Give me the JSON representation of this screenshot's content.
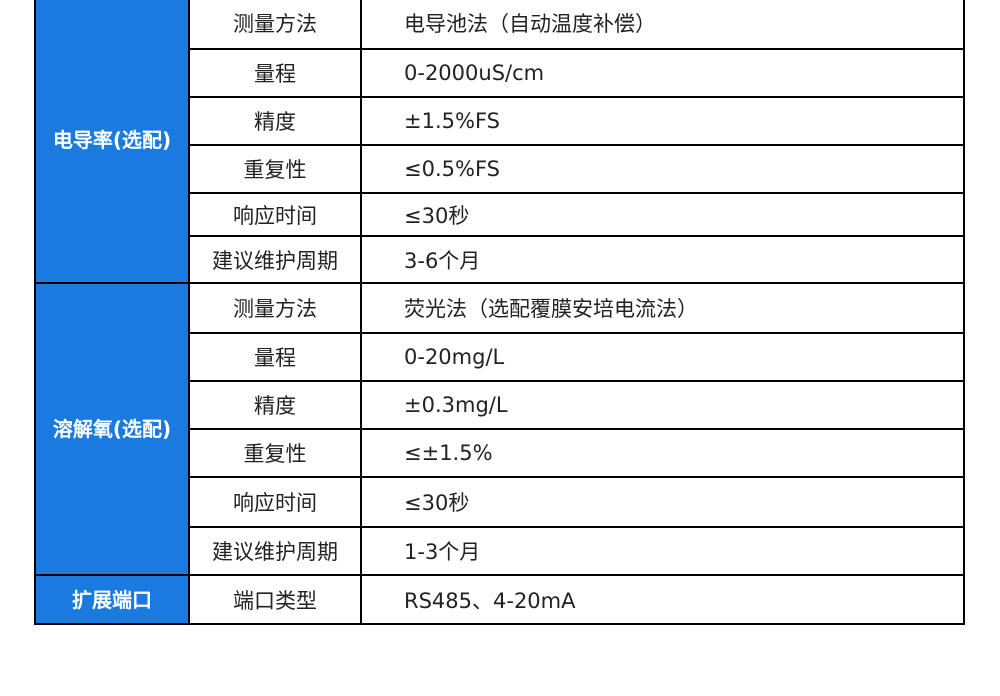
{
  "groups": [
    {
      "category": "电导率\n(选配)",
      "category_lines": [
        "电导率",
        "(选配)"
      ],
      "rows": [
        {
          "label": "测量方法",
          "value": "电导池法（自动温度补偿）"
        },
        {
          "label": "量程",
          "value": "0-2000uS/cm"
        },
        {
          "label": "精度",
          "value": "±1.5%FS"
        },
        {
          "label": "重复性",
          "value": "≤0.5%FS"
        },
        {
          "label": "响应时间",
          "value": "≤30秒"
        },
        {
          "label": "建议维护周期",
          "value": "3-6个月"
        }
      ]
    },
    {
      "category_lines": [
        "溶解氧",
        "(选配)"
      ],
      "rows": [
        {
          "label": "测量方法",
          "value": "荧光法（选配覆膜安培电流法）"
        },
        {
          "label": "量程",
          "value": "0-20mg/L"
        },
        {
          "label": "精度",
          "value": "±0.3mg/L"
        },
        {
          "label": "重复性",
          "value": "≤±1.5%"
        },
        {
          "label": "响应时间",
          "value": "≤30秒"
        },
        {
          "label": "建议维护周期",
          "value": "1-3个月"
        }
      ]
    },
    {
      "category_lines": [
        "扩展端口"
      ],
      "rows": [
        {
          "label": "端口类型",
          "value": "RS485、4-20mA"
        }
      ]
    }
  ],
  "colors": {
    "category_bg": "#1b7ae0",
    "border": "#000000"
  }
}
